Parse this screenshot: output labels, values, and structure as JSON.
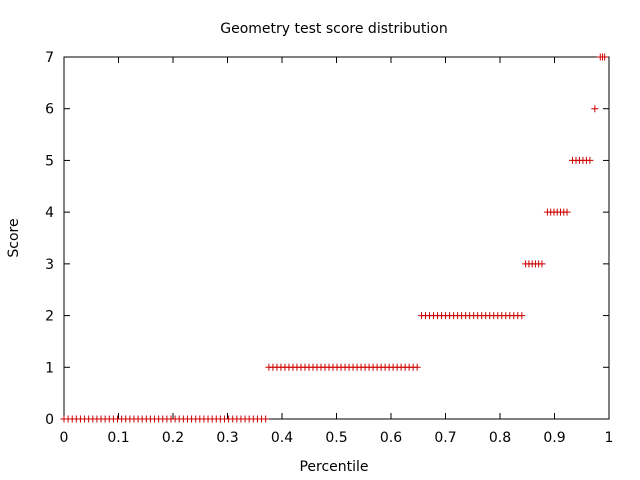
{
  "chart_data": {
    "type": "scatter",
    "title": "Geometry test score distribution",
    "xlabel": "Percentile",
    "ylabel": "Score",
    "xlim": [
      0,
      1
    ],
    "ylim": [
      0,
      7
    ],
    "xticks": [
      "0",
      "0.1",
      "0.2",
      "0.3",
      "0.4",
      "0.5",
      "0.6",
      "0.7",
      "0.8",
      "0.9",
      "1"
    ],
    "yticks": [
      "0",
      "1",
      "2",
      "3",
      "4",
      "5",
      "6",
      "7"
    ],
    "grid": false,
    "marker": "+",
    "point_color": "#cc0000",
    "series": [
      {
        "groups": [
          {
            "score": 0,
            "x_start": 0.0,
            "x_end": 0.37,
            "count": 50
          },
          {
            "score": 1,
            "x_start": 0.376,
            "x_end": 0.648,
            "count": 38
          },
          {
            "score": 2,
            "x_start": 0.656,
            "x_end": 0.84,
            "count": 26
          },
          {
            "score": 3,
            "x_start": 0.847,
            "x_end": 0.877,
            "count": 6
          },
          {
            "score": 4,
            "x_start": 0.887,
            "x_end": 0.923,
            "count": 7
          },
          {
            "score": 5,
            "x_start": 0.933,
            "x_end": 0.965,
            "count": 6
          },
          {
            "score": 6,
            "x_start": 0.974,
            "x_end": 0.974,
            "count": 1
          },
          {
            "score": 7,
            "x_start": 0.984,
            "x_end": 0.992,
            "count": 3
          }
        ]
      }
    ]
  }
}
